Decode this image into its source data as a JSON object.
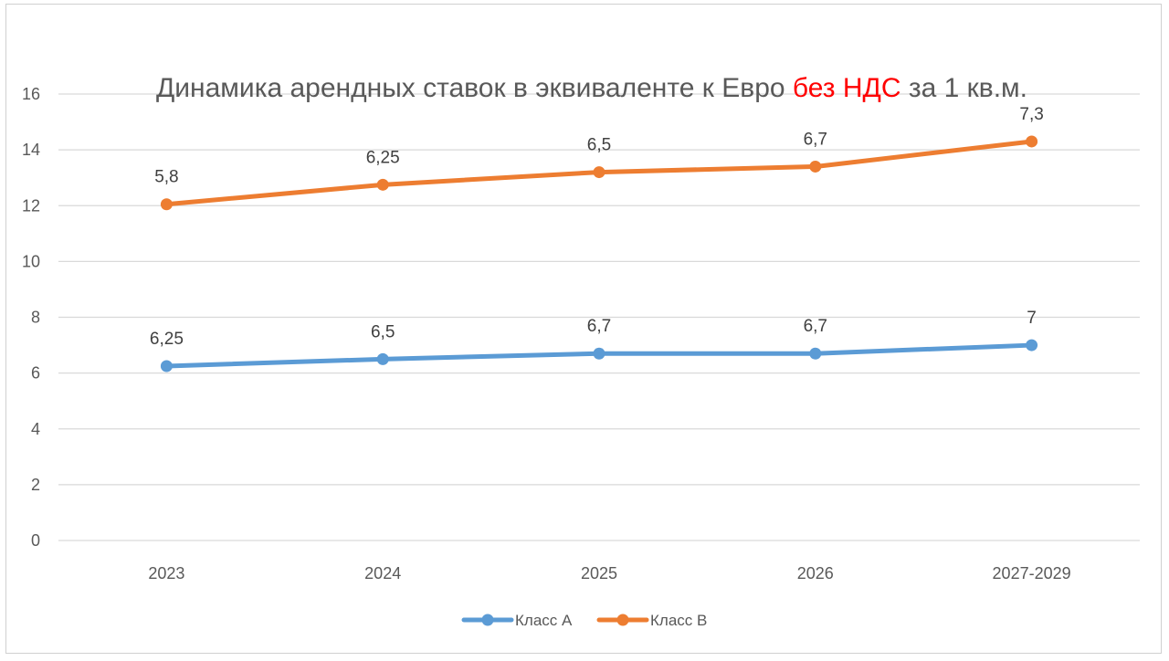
{
  "chart_data": {
    "type": "line",
    "title_parts": [
      {
        "text": "Динамика арендных ставок в эквиваленте к Евро ",
        "color": "#595959"
      },
      {
        "text": "без НДС",
        "color": "#ff0000"
      },
      {
        "text": " за 1 кв.м.",
        "color": "#595959"
      }
    ],
    "categories": [
      "2023",
      "2024",
      "2025",
      "2026",
      "2027-2029"
    ],
    "ylim": [
      0,
      16
    ],
    "yticks": [
      0,
      2,
      4,
      6,
      8,
      10,
      12,
      14,
      16
    ],
    "grid": true,
    "legend_position": "bottom",
    "series": [
      {
        "name": "Класс А",
        "color": "#5b9bd5",
        "values": [
          6.25,
          6.5,
          6.7,
          6.7,
          7
        ],
        "labels": [
          "6,25",
          "6,5",
          "6,7",
          "6,7",
          "7"
        ]
      },
      {
        "name": "Класс В",
        "color": "#ed7d31",
        "values": [
          12.05,
          12.75,
          13.2,
          13.4,
          14.3
        ],
        "labels": [
          "5,8",
          "6,25",
          "6,5",
          "6,7",
          "7,3"
        ]
      }
    ]
  }
}
